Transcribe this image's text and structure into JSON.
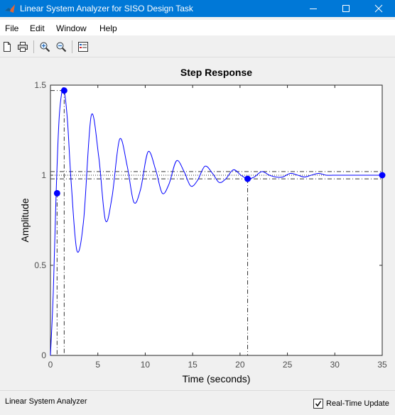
{
  "window": {
    "title": "Linear System Analyzer for SISO Design Task"
  },
  "menu": {
    "items": [
      "File",
      "Edit",
      "Window",
      "Help"
    ]
  },
  "toolbar": {
    "icons": [
      "new-document-icon",
      "print-icon",
      "zoom-in-icon",
      "zoom-out-icon",
      "legend-icon"
    ]
  },
  "status": {
    "text": "Linear System Analyzer",
    "realtime_label": "Real-Time Update",
    "realtime_checked": true
  },
  "chart_data": {
    "type": "line",
    "title": "Step Response",
    "xlabel": "Time (seconds)",
    "ylabel": "Amplitude",
    "xlim": [
      0,
      35
    ],
    "ylim": [
      0,
      1.5
    ],
    "xticks": [
      "0",
      "5",
      "10",
      "15",
      "20",
      "25",
      "30",
      "35"
    ],
    "yticks": [
      "0",
      "0.5",
      "1",
      "1.5"
    ],
    "series": [
      {
        "color": "#0000ff",
        "x": [
          0,
          0.3,
          0.6,
          0.9,
          1.2,
          1.45,
          1.8,
          2.2,
          2.8,
          3.5,
          4.3,
          5.1,
          5.8,
          6.5,
          7.3,
          8.1,
          8.8,
          9.5,
          10.3,
          11.1,
          11.8,
          12.5,
          13.3,
          14.1,
          14.8,
          15.5,
          16.3,
          17.1,
          17.8,
          18.5,
          19.3,
          20.1,
          20.8,
          21.5,
          22.3,
          23.1,
          23.8,
          24.5,
          25.3,
          26.1,
          26.8,
          27.5,
          28.3,
          29.1,
          29.8,
          30.5,
          31.3,
          32.1,
          32.8,
          33.5,
          34.3,
          35
        ],
        "y": [
          0,
          0.35,
          0.9,
          1.3,
          1.46,
          1.47,
          1.3,
          0.95,
          0.58,
          0.75,
          1.33,
          1.1,
          0.75,
          0.88,
          1.2,
          1.05,
          0.85,
          0.92,
          1.13,
          1.03,
          0.9,
          0.95,
          1.08,
          1.02,
          0.94,
          0.97,
          1.05,
          1.01,
          0.96,
          0.98,
          1.03,
          1.0,
          0.98,
          0.99,
          1.02,
          1.0,
          0.99,
          0.99,
          1.01,
          1.0,
          0.99,
          1.0,
          1.01,
          1.0,
          1.0,
          1.0,
          1.0,
          1.0,
          1.0,
          1.0,
          1.0,
          1.0
        ]
      }
    ],
    "markers": [
      {
        "x": 0.7,
        "y": 0.9
      },
      {
        "x": 1.45,
        "y": 1.47
      },
      {
        "x": 20.8,
        "y": 0.98
      },
      {
        "x": 35,
        "y": 1.0
      }
    ],
    "reference_lines": {
      "overshoot_y": 1.47,
      "settle_band": [
        0.98,
        1.02
      ],
      "final_value": 1.0
    },
    "grid": false
  }
}
